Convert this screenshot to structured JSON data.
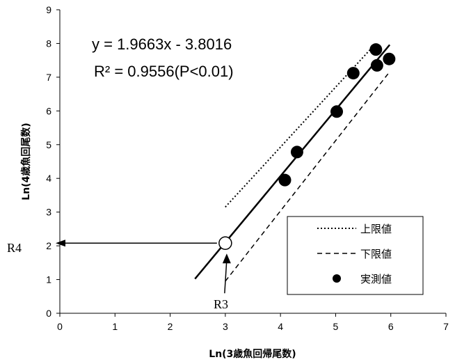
{
  "chart_data": {
    "type": "scatter",
    "xlabel": "Ln(3歳魚回帰尾数)",
    "ylabel": "Ln(4歳魚回尾数)",
    "xlim": [
      0,
      7
    ],
    "ylim": [
      0,
      9
    ],
    "xticks": [
      "0",
      "1",
      "2",
      "3",
      "4",
      "5",
      "6",
      "7"
    ],
    "yticks": [
      "0",
      "1",
      "2",
      "3",
      "4",
      "5",
      "6",
      "7",
      "8",
      "9"
    ],
    "grid": false,
    "legend_position": "bottom-right",
    "equation": "y = 1.9663x - 3.8016",
    "r2_text": "R² = 0.9556(P<0.01)",
    "series": [
      {
        "name": "実測値",
        "style": "points",
        "points": [
          [
            4.08,
            3.95
          ],
          [
            4.3,
            4.78
          ],
          [
            5.02,
            5.98
          ],
          [
            5.32,
            7.12
          ],
          [
            5.73,
            7.82
          ],
          [
            5.75,
            7.35
          ],
          [
            5.97,
            7.54
          ]
        ]
      },
      {
        "name": "上限値",
        "style": "dotted",
        "points": [
          [
            3.0,
            3.15
          ],
          [
            5.7,
            7.95
          ]
        ]
      },
      {
        "name": "下限値",
        "style": "dashed",
        "points": [
          [
            3.0,
            0.95
          ],
          [
            5.95,
            7.1
          ]
        ]
      },
      {
        "name": "",
        "style": "solid",
        "points": [
          [
            2.45,
            1.02
          ],
          [
            5.98,
            7.96
          ]
        ]
      }
    ],
    "prediction": {
      "x": 3.0,
      "y": 2.08
    },
    "annotations": {
      "r4": "R4",
      "r3": "R3"
    }
  }
}
